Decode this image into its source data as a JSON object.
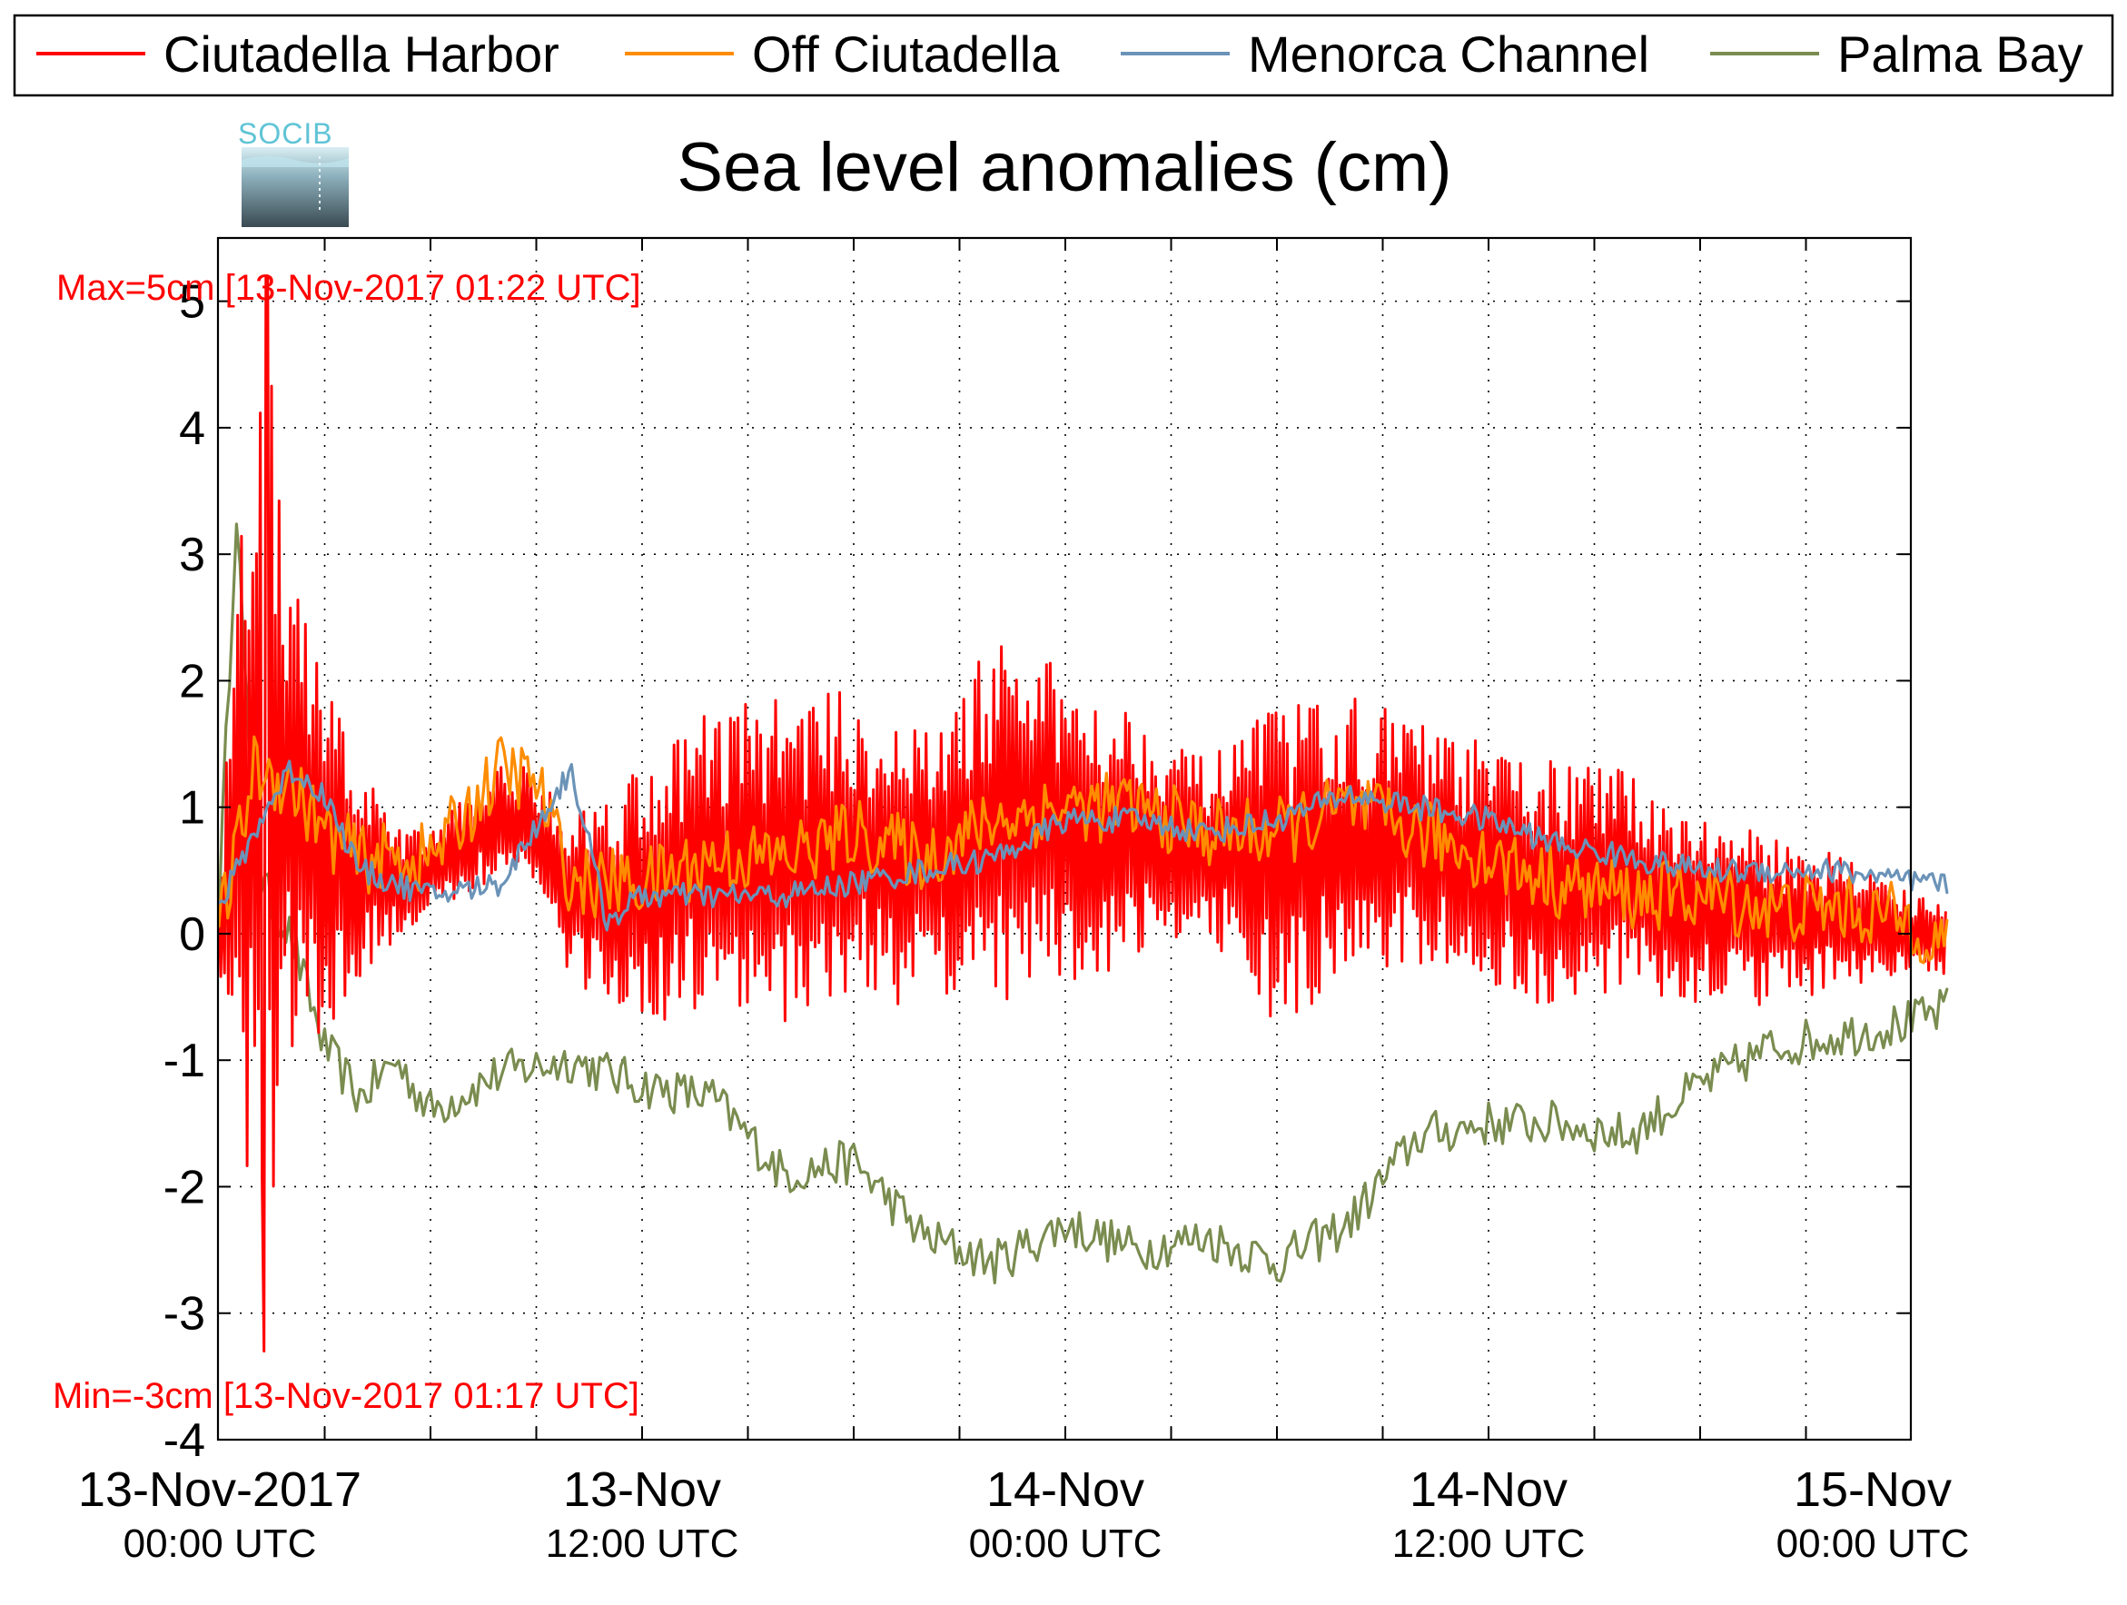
{
  "chart_data": {
    "type": "line",
    "title": "Sea level anomalies (cm)",
    "ylim": [
      -4,
      5.5
    ],
    "xlim": [
      "2017-11-13 00:00",
      "2017-11-15 00:00"
    ],
    "yticks": [
      5,
      4,
      3,
      2,
      1,
      0,
      -1,
      -2,
      -3,
      -4
    ],
    "ytick_labels": [
      "5",
      "4",
      "3",
      "2",
      "1",
      "0",
      "-1",
      "-2",
      "-3",
      "-4"
    ],
    "xticks": [
      {
        "main": "13-Nov-2017",
        "sub": "00:00 UTC",
        "t": "2017-11-13 00:00"
      },
      {
        "main": "13-Nov",
        "sub": "12:00 UTC",
        "t": "2017-11-13 12:00"
      },
      {
        "main": "14-Nov",
        "sub": "00:00 UTC",
        "t": "2017-11-14 00:00"
      },
      {
        "main": "14-Nov",
        "sub": "12:00 UTC",
        "t": "2017-11-14 12:00"
      },
      {
        "main": "15-Nov",
        "sub": "00:00 UTC",
        "t": "2017-11-15 00:00"
      }
    ],
    "grid": true,
    "legend_position": "top",
    "annotations": {
      "max": "Max=5cm [13-Nov-2017 01:22 UTC]",
      "min": "Min=-3cm [13-Nov-2017 01:17 UTC]",
      "color": "#ff0000"
    },
    "series": [
      {
        "name": "Ciutadella Harbor",
        "color": "#ff0000",
        "t": [
          "2017-11-13 00:00",
          "2017-11-13 00:30",
          "2017-11-13 01:00",
          "2017-11-13 01:17",
          "2017-11-13 01:22",
          "2017-11-13 01:40",
          "2017-11-13 02:00",
          "2017-11-13 03:00",
          "2017-11-13 04:00",
          "2017-11-13 05:00",
          "2017-11-13 06:00",
          "2017-11-13 08:00",
          "2017-11-13 09:00",
          "2017-11-13 10:00",
          "2017-11-13 12:00",
          "2017-11-13 14:00",
          "2017-11-13 16:00",
          "2017-11-13 18:00",
          "2017-11-13 20:00",
          "2017-11-13 22:00",
          "2017-11-14 00:00",
          "2017-11-14 02:00",
          "2017-11-14 04:00",
          "2017-11-14 06:00",
          "2017-11-14 08:00",
          "2017-11-14 10:00",
          "2017-11-14 12:00",
          "2017-11-14 14:00",
          "2017-11-14 16:00",
          "2017-11-14 18:00",
          "2017-11-14 20:00",
          "2017-11-14 22:00",
          "2017-11-15 00:00",
          "2017-11-15 01:00"
        ],
        "y_mean": [
          0.0,
          0.6,
          1.2,
          0.8,
          1.4,
          1.0,
          1.0,
          0.6,
          0.5,
          0.4,
          0.5,
          0.9,
          0.8,
          0.3,
          0.3,
          0.6,
          0.6,
          0.7,
          0.5,
          0.9,
          0.8,
          0.8,
          0.7,
          0.5,
          0.8,
          0.7,
          0.5,
          0.4,
          0.4,
          0.2,
          0.1,
          0.1,
          0.0,
          0.0
        ],
        "y_amp": [
          0.3,
          2.0,
          3.0,
          3.5,
          3.5,
          2.6,
          1.8,
          1.3,
          0.8,
          0.4,
          0.3,
          0.4,
          0.5,
          0.6,
          1.0,
          1.1,
          1.2,
          1.1,
          1.0,
          1.3,
          1.2,
          0.9,
          0.6,
          1.2,
          1.0,
          0.9,
          0.9,
          0.9,
          0.8,
          0.7,
          0.6,
          0.5,
          0.3,
          0.3
        ],
        "peak_max": 5.2,
        "peak_min": -3.3
      },
      {
        "name": "Off Ciutadella",
        "color": "#ff8c00",
        "t": [
          "2017-11-13 00:00",
          "2017-11-13 01:00",
          "2017-11-13 02:00",
          "2017-11-13 03:00",
          "2017-11-13 04:00",
          "2017-11-13 06:00",
          "2017-11-13 08:00",
          "2017-11-13 09:00",
          "2017-11-13 10:00",
          "2017-11-13 12:00",
          "2017-11-13 14:00",
          "2017-11-13 16:00",
          "2017-11-13 18:00",
          "2017-11-13 20:00",
          "2017-11-13 22:00",
          "2017-11-14 00:00",
          "2017-11-14 02:00",
          "2017-11-14 04:00",
          "2017-11-14 06:00",
          "2017-11-14 08:00",
          "2017-11-14 10:00",
          "2017-11-14 12:00",
          "2017-11-14 14:00",
          "2017-11-14 16:00",
          "2017-11-14 18:00",
          "2017-11-14 20:00",
          "2017-11-14 22:00",
          "2017-11-15 00:00",
          "2017-11-15 01:00"
        ],
        "y": [
          0.0,
          1.3,
          1.2,
          0.8,
          0.6,
          0.6,
          1.3,
          1.2,
          0.4,
          0.4,
          0.6,
          0.6,
          0.8,
          0.6,
          0.9,
          1.0,
          1.0,
          0.8,
          0.8,
          1.0,
          0.8,
          0.6,
          0.4,
          0.3,
          0.3,
          0.2,
          0.2,
          0.1,
          -0.1
        ]
      },
      {
        "name": "Menorca Channel",
        "color": "#6b93b8",
        "t": [
          "2017-11-13 00:00",
          "2017-11-13 01:00",
          "2017-11-13 02:00",
          "2017-11-13 03:00",
          "2017-11-13 04:00",
          "2017-11-13 06:00",
          "2017-11-13 08:00",
          "2017-11-13 10:00",
          "2017-11-13 11:00",
          "2017-11-13 12:00",
          "2017-11-13 14:00",
          "2017-11-13 16:00",
          "2017-11-13 18:00",
          "2017-11-13 20:00",
          "2017-11-13 22:00",
          "2017-11-14 00:00",
          "2017-11-14 02:00",
          "2017-11-14 04:00",
          "2017-11-14 06:00",
          "2017-11-14 08:00",
          "2017-11-14 10:00",
          "2017-11-14 12:00",
          "2017-11-14 14:00",
          "2017-11-14 16:00",
          "2017-11-14 18:00",
          "2017-11-14 20:00",
          "2017-11-14 22:00",
          "2017-11-15 00:00",
          "2017-11-15 01:00"
        ],
        "y": [
          0.2,
          0.8,
          1.3,
          1.1,
          0.5,
          0.3,
          0.4,
          1.3,
          0.1,
          0.3,
          0.3,
          0.3,
          0.4,
          0.5,
          0.6,
          0.9,
          0.9,
          0.8,
          0.9,
          1.1,
          1.0,
          0.9,
          0.7,
          0.6,
          0.5,
          0.5,
          0.5,
          0.4,
          0.4
        ]
      },
      {
        "name": "Palma Bay",
        "color": "#7a8c4f",
        "t": [
          "2017-11-13 00:00",
          "2017-11-13 00:30",
          "2017-11-13 01:00",
          "2017-11-13 02:00",
          "2017-11-13 03:00",
          "2017-11-13 04:00",
          "2017-11-13 05:00",
          "2017-11-13 06:00",
          "2017-11-13 08:00",
          "2017-11-13 10:00",
          "2017-11-13 12:00",
          "2017-11-13 14:00",
          "2017-11-13 16:00",
          "2017-11-13 18:00",
          "2017-11-13 20:00",
          "2017-11-13 22:00",
          "2017-11-14 00:00",
          "2017-11-14 02:00",
          "2017-11-14 04:00",
          "2017-11-14 06:00",
          "2017-11-14 08:00",
          "2017-11-14 10:00",
          "2017-11-14 12:00",
          "2017-11-14 14:00",
          "2017-11-14 16:00",
          "2017-11-14 18:00",
          "2017-11-14 20:00",
          "2017-11-14 22:00",
          "2017-11-15 00:00",
          "2017-11-15 01:00"
        ],
        "y": [
          0.2,
          3.4,
          0.5,
          0.0,
          -0.9,
          -1.3,
          -1.0,
          -1.4,
          -1.1,
          -1.0,
          -1.2,
          -1.3,
          -1.9,
          -1.8,
          -2.4,
          -2.6,
          -2.3,
          -2.5,
          -2.4,
          -2.6,
          -2.3,
          -1.6,
          -1.5,
          -1.5,
          -1.6,
          -1.2,
          -0.9,
          -0.8,
          -0.7,
          -0.6
        ]
      }
    ]
  },
  "logo": {
    "text": "SOCIB"
  }
}
